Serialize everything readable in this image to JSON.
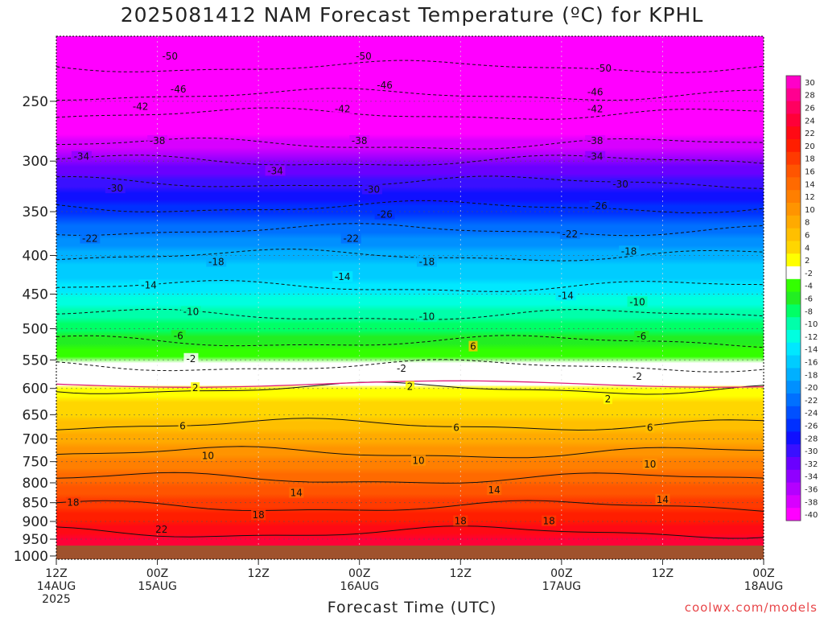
{
  "chart_data": {
    "type": "heatmap",
    "title": "2025081412 NAM Forecast Temperature (ºC) for KPHL",
    "xlabel": "Forecast Time (UTC)",
    "ylabel": "",
    "y_scale": "pressure (hPa), inverted",
    "ylim": [
      1010,
      205
    ],
    "xlim_hours": [
      0,
      84
    ],
    "x_ticks": [
      {
        "hour": 0,
        "line1": "12Z",
        "line2": "14AUG",
        "line3": "2025"
      },
      {
        "hour": 12,
        "line1": "00Z",
        "line2": "15AUG",
        "line3": ""
      },
      {
        "hour": 24,
        "line1": "12Z",
        "line2": "",
        "line3": ""
      },
      {
        "hour": 36,
        "line1": "00Z",
        "line2": "16AUG",
        "line3": ""
      },
      {
        "hour": 48,
        "line1": "12Z",
        "line2": "",
        "line3": ""
      },
      {
        "hour": 60,
        "line1": "00Z",
        "line2": "17AUG",
        "line3": ""
      },
      {
        "hour": 72,
        "line1": "12Z",
        "line2": "",
        "line3": ""
      },
      {
        "hour": 84,
        "line1": "00Z",
        "line2": "18AUG",
        "line3": ""
      }
    ],
    "y_ticks": [
      "250",
      "300",
      "350",
      "400",
      "450",
      "500",
      "550",
      "600",
      "650",
      "700",
      "750",
      "800",
      "850",
      "900",
      "950",
      "1000"
    ],
    "y_tick_values": [
      250,
      300,
      350,
      400,
      450,
      500,
      550,
      600,
      650,
      700,
      750,
      800,
      850,
      900,
      950,
      1000
    ],
    "colorbar_labels": [
      "30",
      "28",
      "26",
      "24",
      "22",
      "20",
      "18",
      "16",
      "14",
      "12",
      "10",
      "8",
      "6",
      "4",
      "2",
      "-2",
      "-4",
      "-6",
      "-8",
      "-10",
      "-12",
      "-14",
      "-16",
      "-18",
      "-20",
      "-22",
      "-24",
      "-26",
      "-28",
      "-30",
      "-32",
      "-34",
      "-36",
      "-38",
      "-40"
    ],
    "colorbar_colors": [
      "#ff00c8",
      "#ff0090",
      "#ff0060",
      "#ff0038",
      "#ff0a14",
      "#ff1e00",
      "#ff3a00",
      "#ff5500",
      "#ff6a00",
      "#ff7f00",
      "#ff9400",
      "#ffaa00",
      "#ffbf00",
      "#ffd600",
      "#ffff00",
      "#ffffff",
      "#33ff00",
      "#22ee22",
      "#00ff66",
      "#00ffaa",
      "#00ffe0",
      "#00e8ff",
      "#00ccff",
      "#00b0ff",
      "#0090ff",
      "#0070ff",
      "#0050ff",
      "#0030ff",
      "#1010ff",
      "#3a10ff",
      "#6a00ff",
      "#9000ff",
      "#b400ff",
      "#d800ff",
      "#ff00ff"
    ],
    "temperature_profile_hour0": [
      {
        "p": 225,
        "t": -50
      },
      {
        "p": 245,
        "t": -46
      },
      {
        "p": 260,
        "t": -42
      },
      {
        "p": 285,
        "t": -38
      },
      {
        "p": 300,
        "t": -34
      },
      {
        "p": 320,
        "t": -30
      },
      {
        "p": 345,
        "t": -26
      },
      {
        "p": 370,
        "t": -22
      },
      {
        "p": 400,
        "t": -18
      },
      {
        "p": 440,
        "t": -14
      },
      {
        "p": 480,
        "t": -10
      },
      {
        "p": 520,
        "t": -6
      },
      {
        "p": 560,
        "t": -2
      },
      {
        "p": 600,
        "t": 2
      },
      {
        "p": 670,
        "t": 6
      },
      {
        "p": 730,
        "t": 10
      },
      {
        "p": 790,
        "t": 14
      },
      {
        "p": 860,
        "t": 18
      },
      {
        "p": 930,
        "t": 22
      }
    ],
    "contour_labels": [
      {
        "value": "-50",
        "hour": 13.5,
        "p": 218
      },
      {
        "value": "-50",
        "hour": 36.5,
        "p": 218
      },
      {
        "value": "-50",
        "hour": 65,
        "p": 226
      },
      {
        "value": "-46",
        "hour": 14.5,
        "p": 241
      },
      {
        "value": "-46",
        "hour": 39,
        "p": 238
      },
      {
        "value": "-46",
        "hour": 64,
        "p": 243
      },
      {
        "value": "-42",
        "hour": 10,
        "p": 254
      },
      {
        "value": "-42",
        "hour": 34,
        "p": 256
      },
      {
        "value": "-42",
        "hour": 64,
        "p": 256
      },
      {
        "value": "-38",
        "hour": 12,
        "p": 282
      },
      {
        "value": "-38",
        "hour": 36,
        "p": 282
      },
      {
        "value": "-38",
        "hour": 64,
        "p": 282
      },
      {
        "value": "-34",
        "hour": 3,
        "p": 296
      },
      {
        "value": "-34",
        "hour": 26,
        "p": 309
      },
      {
        "value": "-34",
        "hour": 64,
        "p": 296
      },
      {
        "value": "-30",
        "hour": 7,
        "p": 326
      },
      {
        "value": "-30",
        "hour": 37.5,
        "p": 327
      },
      {
        "value": "-30",
        "hour": 67,
        "p": 322
      },
      {
        "value": "-26",
        "hour": 39,
        "p": 353
      },
      {
        "value": "-26",
        "hour": 64.5,
        "p": 344
      },
      {
        "value": "-22",
        "hour": 4,
        "p": 380
      },
      {
        "value": "-22",
        "hour": 35,
        "p": 380
      },
      {
        "value": "-22",
        "hour": 61,
        "p": 375
      },
      {
        "value": "-18",
        "hour": 19,
        "p": 408
      },
      {
        "value": "-18",
        "hour": 44,
        "p": 408
      },
      {
        "value": "-18",
        "hour": 68,
        "p": 395
      },
      {
        "value": "-14",
        "hour": 11,
        "p": 438
      },
      {
        "value": "-14",
        "hour": 34,
        "p": 427
      },
      {
        "value": "-14",
        "hour": 60.5,
        "p": 452
      },
      {
        "value": "-10",
        "hour": 16,
        "p": 475
      },
      {
        "value": "-10",
        "hour": 44,
        "p": 482
      },
      {
        "value": "-10",
        "hour": 69,
        "p": 461
      },
      {
        "value": "-6",
        "hour": 14.5,
        "p": 511
      },
      {
        "value": "-6",
        "hour": 69.5,
        "p": 512
      },
      {
        "value": "6",
        "hour": 49.5,
        "p": 528
      },
      {
        "value": "-2",
        "hour": 16,
        "p": 548
      },
      {
        "value": "-2",
        "hour": 41,
        "p": 565
      },
      {
        "value": "-2",
        "hour": 69,
        "p": 579
      },
      {
        "value": "2",
        "hour": 16.5,
        "p": 599
      },
      {
        "value": "2",
        "hour": 42,
        "p": 597
      },
      {
        "value": "2",
        "hour": 65.5,
        "p": 620
      },
      {
        "value": "6",
        "hour": 15,
        "p": 673
      },
      {
        "value": "6",
        "hour": 47.5,
        "p": 676
      },
      {
        "value": "6",
        "hour": 70.5,
        "p": 676
      },
      {
        "value": "10",
        "hour": 18,
        "p": 737
      },
      {
        "value": "10",
        "hour": 43,
        "p": 748
      },
      {
        "value": "10",
        "hour": 70.5,
        "p": 756
      },
      {
        "value": "14",
        "hour": 28.5,
        "p": 825
      },
      {
        "value": "14",
        "hour": 52,
        "p": 818
      },
      {
        "value": "14",
        "hour": 72,
        "p": 842
      },
      {
        "value": "18",
        "hour": 2,
        "p": 850
      },
      {
        "value": "18",
        "hour": 24,
        "p": 883
      },
      {
        "value": "18",
        "hour": 48,
        "p": 899
      },
      {
        "value": "18",
        "hour": 58.5,
        "p": 899
      },
      {
        "value": "22",
        "hour": 12.5,
        "p": 922
      }
    ]
  },
  "credit": "coolwx.com/models"
}
